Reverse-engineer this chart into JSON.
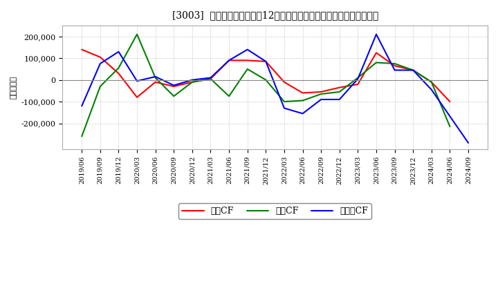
{
  "title": "[3003]  キャッシュフローの12か月移動合計の対前年同期増減額の推移",
  "ylabel": "（百万円）",
  "background_color": "#ffffff",
  "plot_background": "#ffffff",
  "grid_color": "#bbbbbb",
  "xlabels": [
    "2019/06",
    "2019/09",
    "2019/12",
    "2020/03",
    "2020/06",
    "2020/09",
    "2020/12",
    "2021/03",
    "2021/06",
    "2021/09",
    "2021/12",
    "2022/03",
    "2022/06",
    "2022/09",
    "2022/12",
    "2023/03",
    "2023/06",
    "2023/09",
    "2023/12",
    "2024/03",
    "2024/06",
    "2024/09"
  ],
  "operating_cf": [
    140000,
    105000,
    30000,
    -80000,
    -10000,
    -30000,
    -10000,
    5000,
    90000,
    90000,
    85000,
    -10000,
    -60000,
    -55000,
    -35000,
    -20000,
    125000,
    65000,
    45000,
    -10000,
    -100000,
    null
  ],
  "investing_cf": [
    -260000,
    -30000,
    55000,
    210000,
    10000,
    -75000,
    -10000,
    5000,
    -75000,
    50000,
    0,
    -100000,
    -95000,
    -65000,
    -55000,
    10000,
    80000,
    75000,
    45000,
    -10000,
    -215000,
    null
  ],
  "free_cf": [
    -120000,
    75000,
    130000,
    -5000,
    15000,
    -25000,
    0,
    10000,
    90000,
    140000,
    85000,
    -130000,
    -155000,
    -90000,
    -90000,
    5000,
    210000,
    45000,
    45000,
    -45000,
    null,
    -290000
  ],
  "operating_color": "#ff0000",
  "investing_color": "#008000",
  "free_color": "#0000ff",
  "ylim": [
    -320000,
    250000
  ],
  "yticks": [
    -200000,
    -100000,
    0,
    100000,
    200000
  ],
  "legend_labels": [
    "営業CF",
    "投資CF",
    "フリーCF"
  ]
}
